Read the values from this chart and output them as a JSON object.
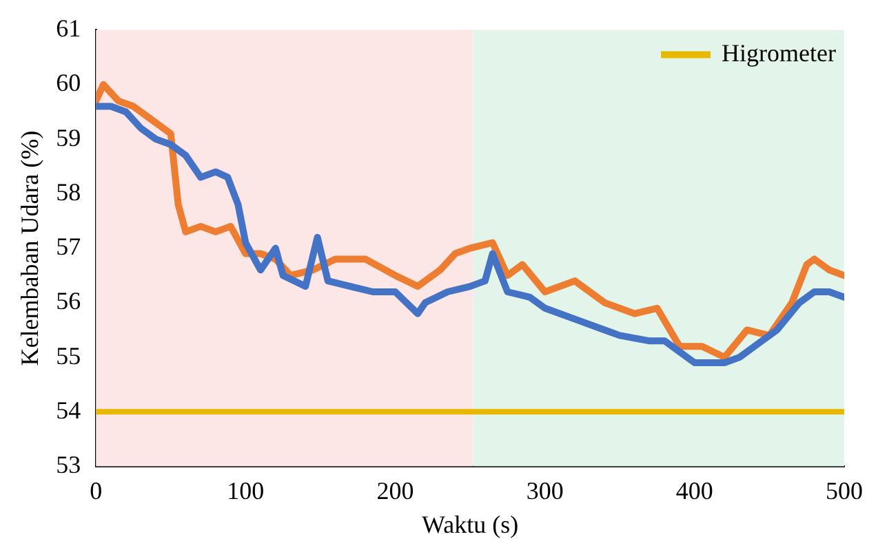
{
  "chart_data": {
    "type": "line",
    "xlabel": "Waktu (s)",
    "ylabel": "Kelembaban Udara (%)",
    "xlim": [
      0,
      500
    ],
    "xticks": [
      0,
      100,
      200,
      300,
      400,
      500
    ],
    "ylim": [
      53,
      61
    ],
    "yticks": [
      53,
      54,
      55,
      56,
      57,
      58,
      59,
      60,
      61
    ],
    "grid": false,
    "legend": "top right",
    "marker": "none",
    "line_style": "solid",
    "bands": [
      {
        "axis": "x",
        "from": 0,
        "to": 252,
        "color": "#fde6e6"
      },
      {
        "axis": "x",
        "from": 252,
        "to": 500,
        "color": "#e3f5ea"
      }
    ],
    "series": [
      {
        "color": "#4472c4",
        "x": [
          0,
          10,
          20,
          30,
          40,
          50,
          60,
          70,
          80,
          88,
          95,
          100,
          110,
          120,
          125,
          140,
          148,
          155,
          170,
          185,
          200,
          215,
          220,
          235,
          250,
          260,
          265,
          275,
          290,
          300,
          320,
          340,
          350,
          370,
          380,
          400,
          420,
          430,
          440,
          455,
          470,
          480,
          490,
          500
        ],
        "values": [
          59.6,
          59.6,
          59.5,
          59.2,
          59.0,
          58.9,
          58.7,
          58.3,
          58.4,
          58.3,
          57.8,
          57.1,
          56.6,
          57.0,
          56.5,
          56.3,
          57.2,
          56.4,
          56.3,
          56.2,
          56.2,
          55.8,
          56.0,
          56.2,
          56.3,
          56.4,
          56.9,
          56.2,
          56.1,
          55.9,
          55.7,
          55.5,
          55.4,
          55.3,
          55.3,
          54.9,
          54.9,
          55.0,
          55.2,
          55.5,
          56.0,
          56.2,
          56.2,
          56.1
        ]
      },
      {
        "color": "#ed7d31",
        "x": [
          0,
          5,
          15,
          25,
          35,
          45,
          50,
          55,
          60,
          70,
          80,
          90,
          100,
          110,
          120,
          130,
          145,
          160,
          180,
          200,
          215,
          230,
          240,
          250,
          265,
          275,
          285,
          300,
          320,
          340,
          360,
          375,
          390,
          405,
          420,
          435,
          450,
          465,
          475,
          480,
          490,
          500
        ],
        "values": [
          59.7,
          60.0,
          59.7,
          59.6,
          59.4,
          59.2,
          59.1,
          57.8,
          57.3,
          57.4,
          57.3,
          57.4,
          56.9,
          56.9,
          56.8,
          56.5,
          56.6,
          56.8,
          56.8,
          56.5,
          56.3,
          56.6,
          56.9,
          57.0,
          57.1,
          56.5,
          56.7,
          56.2,
          56.4,
          56.0,
          55.8,
          55.9,
          55.2,
          55.2,
          55.0,
          55.5,
          55.4,
          56.0,
          56.7,
          56.8,
          56.6,
          56.5
        ]
      },
      {
        "name": "Higrometer",
        "color": "#e6b800",
        "x": [
          0,
          500
        ],
        "values": [
          54,
          54
        ]
      }
    ]
  }
}
